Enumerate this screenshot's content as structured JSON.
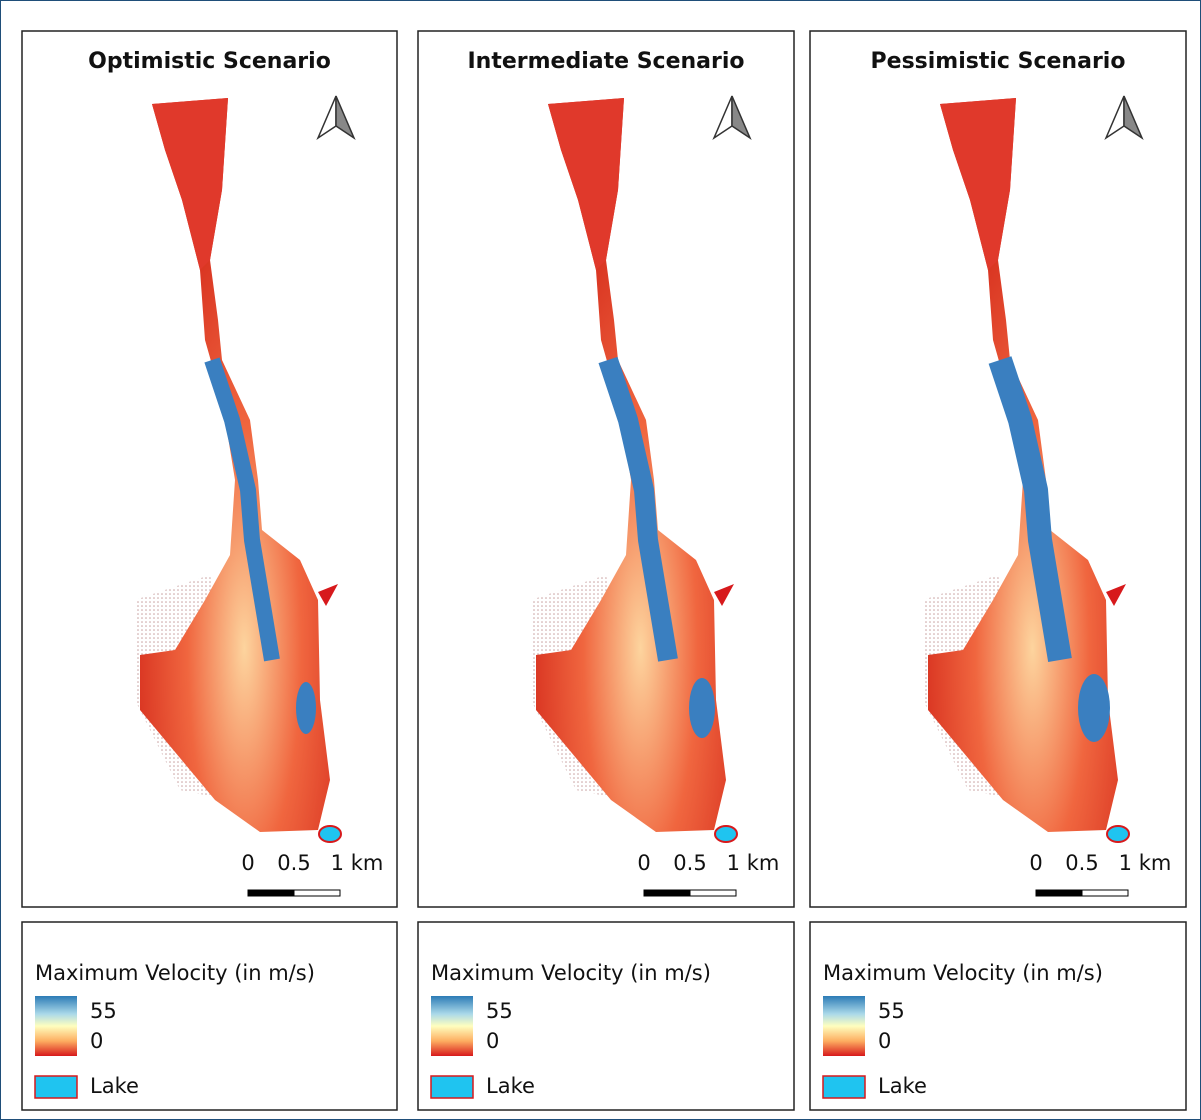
{
  "panels": [
    {
      "title": "Optimistic Scenario",
      "scale_labels": [
        "0",
        "0.5",
        "1 km"
      ],
      "legend": {
        "title": "Maximum Velocity (in m/s)",
        "max": "55",
        "min": "0",
        "lake": "Lake"
      }
    },
    {
      "title": "Intermediate Scenario",
      "scale_labels": [
        "0",
        "0.5",
        "1 km"
      ],
      "legend": {
        "title": "Maximum Velocity (in m/s)",
        "max": "55",
        "min": "0",
        "lake": "Lake"
      }
    },
    {
      "title": "Pessimistic Scenario",
      "scale_labels": [
        "0",
        "0.5",
        "1 km"
      ],
      "legend": {
        "title": "Maximum Velocity (in m/s)",
        "max": "55",
        "min": "0",
        "lake": "Lake"
      }
    }
  ]
}
